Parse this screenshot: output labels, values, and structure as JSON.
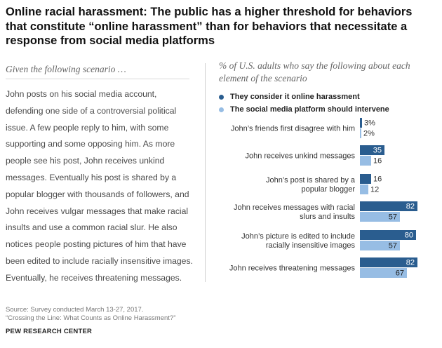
{
  "title": "Online racial harassment: The public has a higher threshold for behaviors that constitute “online harassment” than for behaviors that necessitate a response from social media platforms",
  "scenario": {
    "heading": "Given the following scenario …",
    "text": "John posts on his social media account, defending one side of a controversial political issue. A few people reply to him, with some supporting and some opposing him. As more people see his post, John receives unkind messages. Eventually his post is shared by a popular blogger with thousands of followers, and John receives vulgar messages that make racial insults and use a common racial slur. He also notices people posting pictures of him that have been edited to include racially insensitive images. Eventually, he receives threatening messages."
  },
  "chart_heading": "% of U.S. adults who say the following about each element of the scenario",
  "chart_data": {
    "type": "bar",
    "orientation": "horizontal",
    "title": "% of U.S. adults who say the following about each element of the scenario",
    "categories": [
      [
        "John’s friends first disagree with him"
      ],
      [
        "John receives unkind messages"
      ],
      [
        "John’s post is shared by a",
        "popular blogger"
      ],
      [
        "John receives messages with racial",
        "slurs and insults"
      ],
      [
        "John’s picture is edited to include",
        "racially insensitive images"
      ],
      [
        "John receives threatening messages"
      ]
    ],
    "series": [
      {
        "name": "They consider it online harassment",
        "color": "#2a5d8f",
        "values": [
          3,
          35,
          16,
          82,
          80,
          82
        ],
        "labels": [
          "3%",
          "35",
          "16",
          "82",
          "80",
          "82"
        ]
      },
      {
        "name": "The social media platform should intervene",
        "color": "#97bde4",
        "values": [
          2,
          16,
          12,
          57,
          57,
          67
        ],
        "labels": [
          "2%",
          "16",
          "12",
          "57",
          "57",
          "67"
        ]
      }
    ],
    "xlim": [
      0,
      100
    ],
    "xlabel": "",
    "ylabel": ""
  },
  "footer": {
    "source": "Source: Survey conducted March 13-27, 2017.",
    "report": "“Crossing the Line: What Counts as Online Harassment?”",
    "brand": "PEW RESEARCH CENTER"
  }
}
